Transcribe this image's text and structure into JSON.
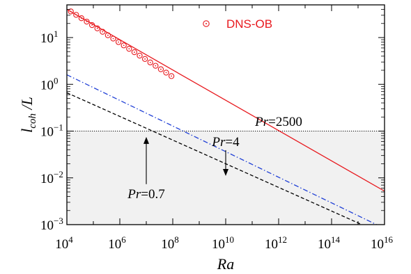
{
  "chart_data": {
    "type": "line",
    "xlabel": "Ra",
    "ylabel": "l_coh /L",
    "xscale": "log",
    "yscale": "log",
    "xlim": [
      10000,
      10000000000000000
    ],
    "ylim": [
      0.001,
      50
    ],
    "grid": false,
    "legend_position": "top-center",
    "x_ticks": [
      {
        "value": 10000,
        "base": "10",
        "exp": "4"
      },
      {
        "value": 1000000,
        "base": "10",
        "exp": "6"
      },
      {
        "value": 100000000,
        "base": "10",
        "exp": "8"
      },
      {
        "value": 10000000000,
        "base": "10",
        "exp": "10"
      },
      {
        "value": 1000000000000,
        "base": "10",
        "exp": "12"
      },
      {
        "value": 100000000000000,
        "base": "10",
        "exp": "14"
      },
      {
        "value": 10000000000000000,
        "base": "10",
        "exp": "16"
      }
    ],
    "y_ticks": [
      {
        "value": 0.001,
        "base": "10",
        "exp": "−3"
      },
      {
        "value": 0.01,
        "base": "10",
        "exp": "−2"
      },
      {
        "value": 0.1,
        "base": "10",
        "exp": "−1"
      },
      {
        "value": 1,
        "base": "10",
        "exp": "0"
      },
      {
        "value": 10,
        "base": "10",
        "exp": "1"
      }
    ],
    "series": [
      {
        "name": "DNS-OB",
        "kind": "markers",
        "marker": "circle-dot",
        "color": "#e8191e",
        "x": [
          14125,
          22387,
          35481,
          56234,
          89125,
          141254,
          223872,
          354813,
          562341,
          891251,
          1412538,
          2238721,
          3548134,
          5623413,
          8912509,
          14125375,
          22387211,
          35481339,
          56234133,
          89125094
        ],
        "y": [
          36.2,
          30.6,
          25.9,
          21.9,
          18.5,
          15.7,
          13.3,
          11.2,
          9.5,
          8.0,
          6.8,
          5.75,
          4.86,
          4.11,
          3.48,
          2.94,
          2.49,
          2.1,
          1.78,
          1.5
        ]
      },
      {
        "label": "Pr=2500",
        "kind": "line",
        "dash": "solid",
        "color": "#e8191e",
        "x": [
          10000,
          10000000000000000
        ],
        "y": [
          40.0,
          0.0052
        ]
      },
      {
        "label": "Pr=4",
        "kind": "line",
        "dash": "dashdot",
        "color": "#1f3fd6",
        "x": [
          10000,
          5000000000000000
        ],
        "y": [
          1.6,
          0.001
        ]
      },
      {
        "label": "Pr=0.7",
        "kind": "line",
        "dash": "dashed",
        "color": "#000000",
        "x": [
          10000,
          1400000000000000
        ],
        "y": [
          0.66,
          0.001
        ]
      }
    ],
    "reference_line": {
      "y": 0.1,
      "style": "dotted",
      "color": "#000000"
    },
    "shaded_region": {
      "y": [
        0.001,
        0.1
      ],
      "color": "#f1f1f1"
    },
    "annotations": [
      {
        "pr": "Pr",
        "eq": "=2500",
        "x": 1000000000000,
        "y": 0.13
      },
      {
        "pr": "Pr",
        "eq": "=4",
        "x": 10000000000,
        "y": 0.048,
        "arrow_to": {
          "x": 10000000000,
          "y": 0.011
        }
      },
      {
        "pr": "Pr",
        "eq": "=0.7",
        "x": 10000000,
        "y": 0.0037,
        "arrow_to": {
          "x": 10000000,
          "y": 0.075
        }
      }
    ]
  }
}
